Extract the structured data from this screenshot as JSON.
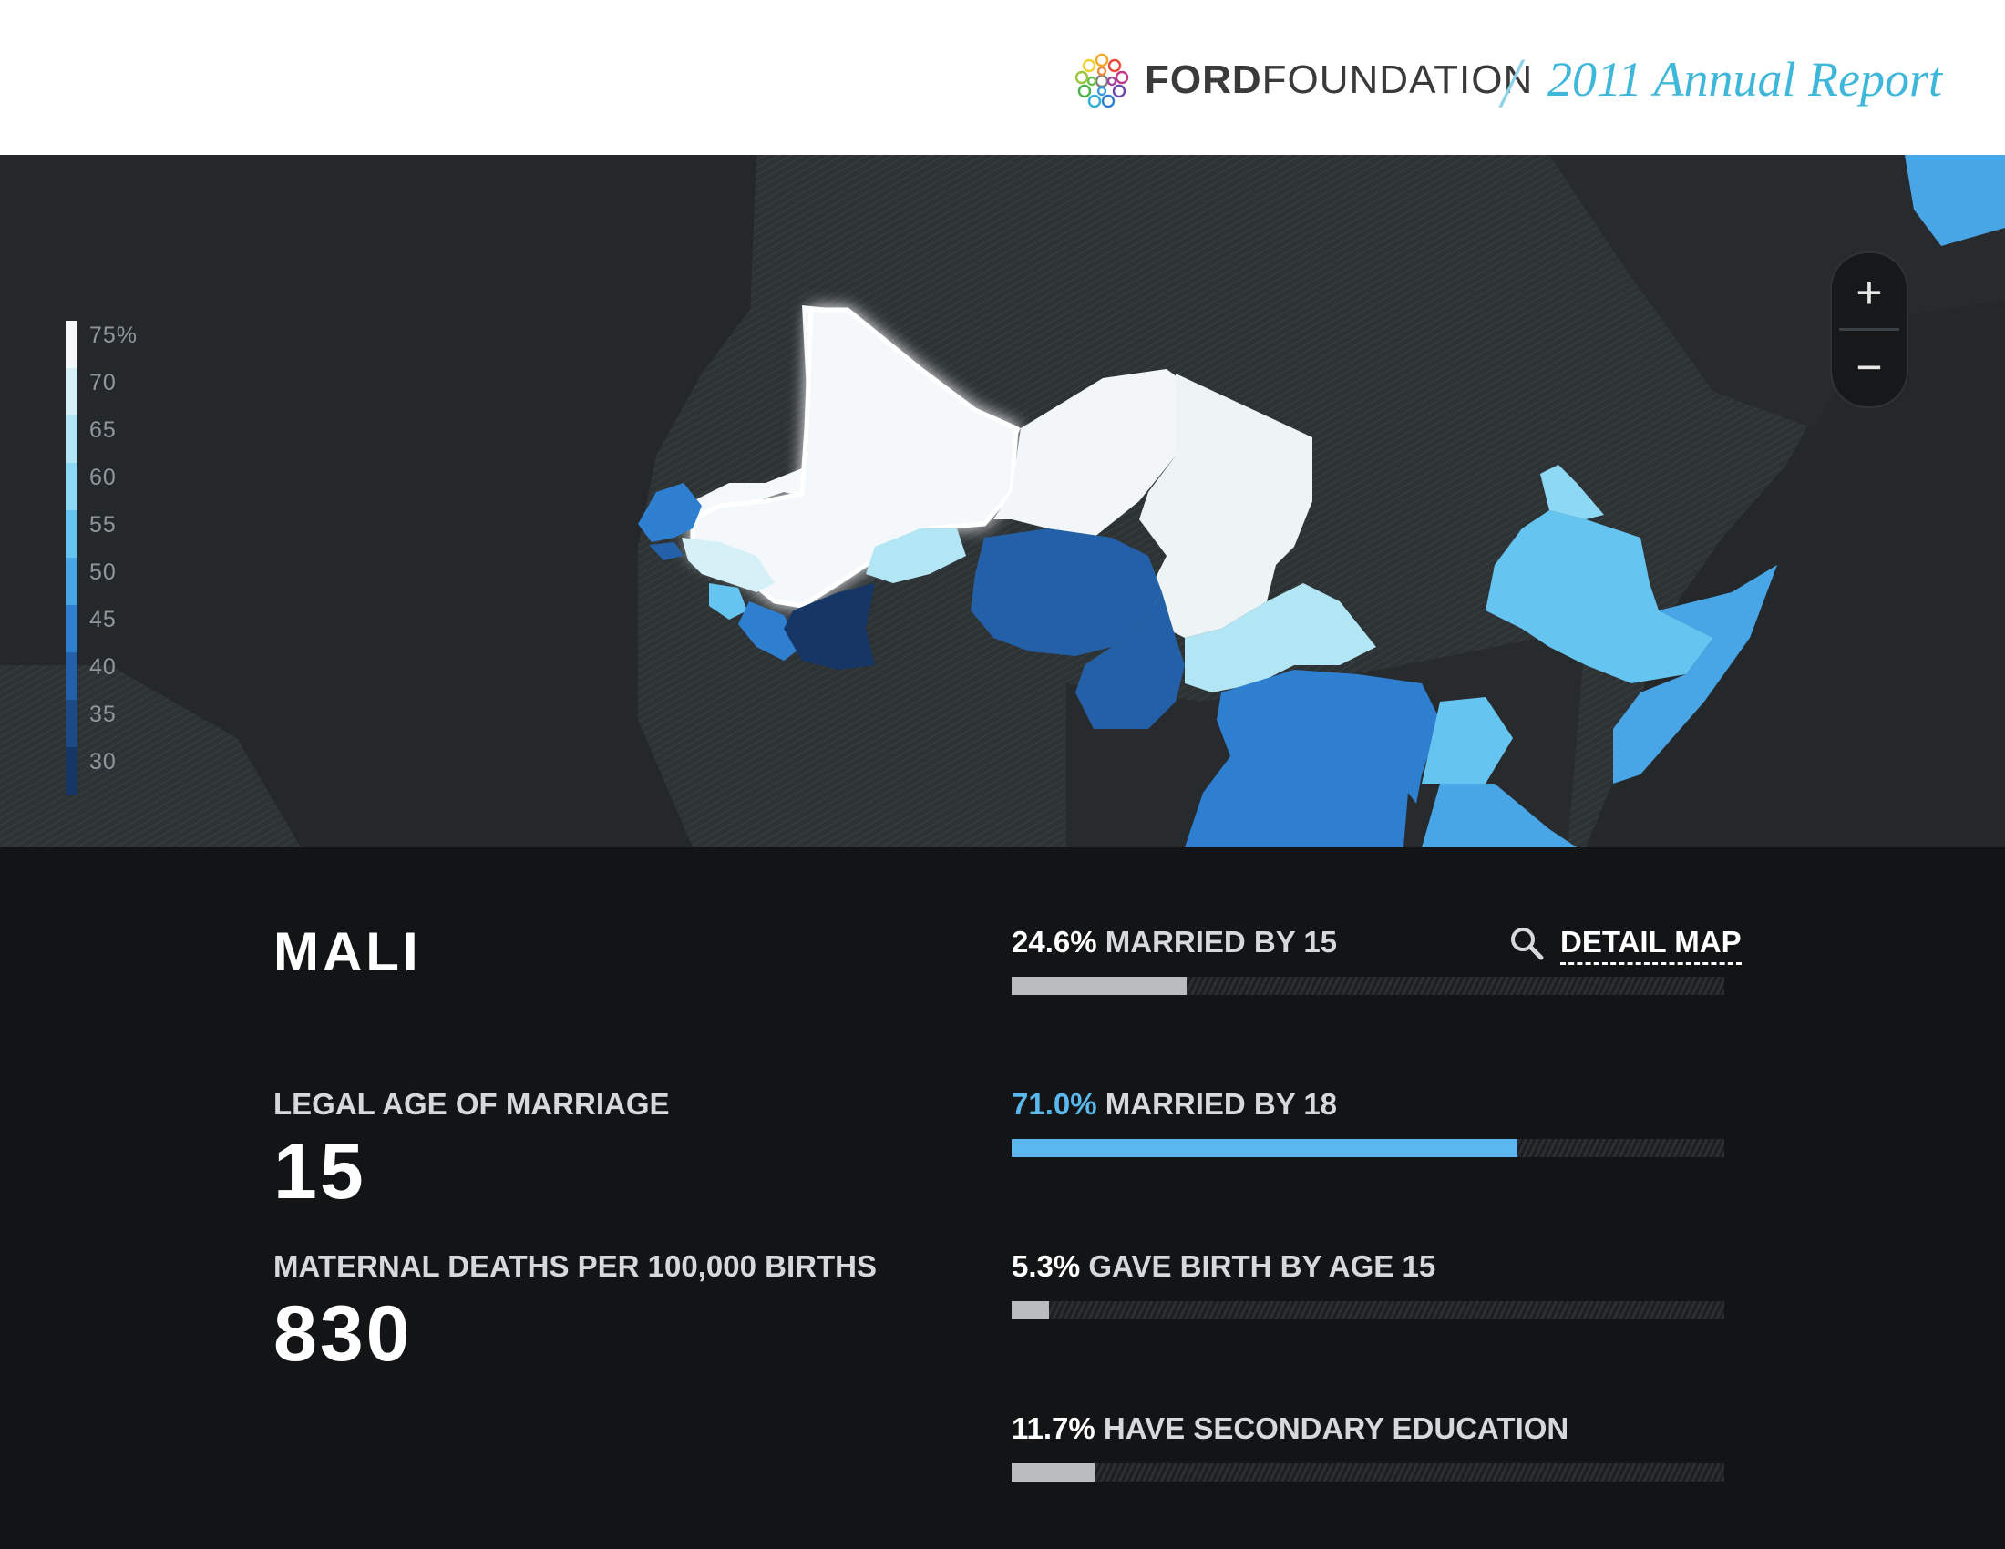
{
  "header": {
    "brand_part1": "FORD",
    "brand_part2": "FOUNDATION",
    "slash": "/",
    "report_title": "2011 Annual Report"
  },
  "map": {
    "legend": [
      {
        "label": "75%",
        "color": "#f4f8fa"
      },
      {
        "label": "70",
        "color": "#d6f0f8"
      },
      {
        "label": "65",
        "color": "#b3e6f5"
      },
      {
        "label": "60",
        "color": "#8dd8f4"
      },
      {
        "label": "55",
        "color": "#66c4f0"
      },
      {
        "label": "50",
        "color": "#49a6e6"
      },
      {
        "label": "45",
        "color": "#2f7fd0"
      },
      {
        "label": "40",
        "color": "#2460a8"
      },
      {
        "label": "35",
        "color": "#1c4a84"
      },
      {
        "label": "30",
        "color": "#163766"
      }
    ],
    "zoom_in": "+",
    "zoom_out": "−"
  },
  "country": {
    "name": "MALI",
    "legal_age_label": "LEGAL AGE OF MARRIAGE",
    "legal_age_value": "15",
    "maternal_label": "MATERNAL DEATHS PER 100,000 BIRTHS",
    "maternal_value": "830"
  },
  "detail_map_label": "DETAIL MAP",
  "bars": [
    {
      "pct": "24.6%",
      "label": " MARRIED BY 15",
      "value": 24.6,
      "accent": false
    },
    {
      "pct": "71.0%",
      "label": " MARRIED BY 18",
      "value": 71.0,
      "accent": true
    },
    {
      "pct": "5.3%",
      "label": " GAVE BIRTH BY AGE 15",
      "value": 5.3,
      "accent": false
    },
    {
      "pct": "11.7%",
      "label": " HAVE SECONDARY EDUCATION",
      "value": 11.7,
      "accent": false
    }
  ]
}
